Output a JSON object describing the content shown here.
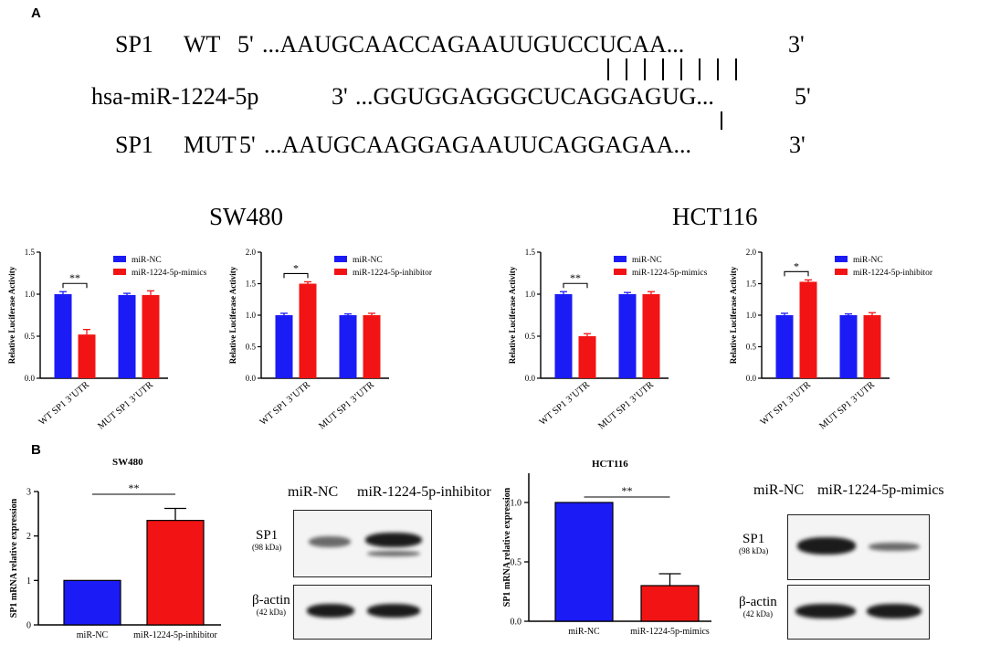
{
  "panel_a": {
    "letter": "A",
    "wt": {
      "name": "SP1",
      "type": "WT",
      "five": "5'",
      "seq": "...AAUGCAACCAGAAUUGUCCUCAA...",
      "three": "3'"
    },
    "mirna": {
      "name": "hsa-miR-1224-5p",
      "three": "3'",
      "seq": "...GGUGGAGGGCUCAGGAGUG...",
      "five": "5'"
    },
    "mut": {
      "name": "SP1",
      "type": "MUT",
      "five": "5'",
      "seq": "...AAUGCAAGGAGAAUUCAGGAGAA...",
      "three": "3'"
    },
    "pairing_marks": 8,
    "cell_lines": [
      "SW480",
      "HCT116"
    ]
  },
  "panel_b": {
    "letter": "B",
    "sw480_title": "SW480",
    "hct116_title": "HCT116",
    "blot_sw480": {
      "lanes": [
        "miR-NC",
        "miR-1224-5p-inhibitor"
      ],
      "protein": "SP1",
      "protein_kda": "(98 kDa)",
      "control": "β-actin",
      "control_kda": "(42 kDa)"
    },
    "blot_hct116": {
      "lanes": [
        "miR-NC",
        "miR-1224-5p-mimics"
      ],
      "protein": "SP1",
      "protein_kda": "(98 kDa)",
      "control": "β-actin",
      "control_kda": "(42 kDa)"
    }
  },
  "colors": {
    "blue": "#1b1bf5",
    "red": "#f21414"
  },
  "chart_data": [
    {
      "id": "luc-sw480-mimics",
      "type": "bar",
      "ylabel": "Relative Luciferase Activity",
      "ylim": [
        0,
        1.5
      ],
      "yticks": [
        "0.0",
        "0.5",
        "1.0",
        "1.5"
      ],
      "tick_values": [
        0,
        0.5,
        1.0,
        1.5
      ],
      "categories": [
        "WT SP1 3’UTR",
        "MUT SP1 3’UTR"
      ],
      "series": [
        {
          "name": "miR-NC",
          "values": [
            1.0,
            0.99
          ],
          "errors": [
            0.03,
            0.02
          ]
        },
        {
          "name": "miR-1224-5p-mimics",
          "values": [
            0.52,
            0.99
          ],
          "errors": [
            0.06,
            0.05
          ]
        }
      ],
      "significance": [
        {
          "category": 0,
          "label": "**"
        }
      ],
      "legend": "top-right"
    },
    {
      "id": "luc-sw480-inhibitor",
      "type": "bar",
      "ylabel": "Relative Luciferase Activity",
      "ylim": [
        0,
        2.0
      ],
      "yticks": [
        "0.0",
        "0.5",
        "1.0",
        "1.5",
        "2.0"
      ],
      "tick_values": [
        0,
        0.5,
        1.0,
        1.5,
        2.0
      ],
      "categories": [
        "WT SP1 3’UTR",
        "MUT SP1 3’UTR"
      ],
      "series": [
        {
          "name": "miR-NC",
          "values": [
            1.0,
            1.0
          ],
          "errors": [
            0.03,
            0.02
          ]
        },
        {
          "name": "miR-1224-5p-inhibitor",
          "values": [
            1.5,
            1.0
          ],
          "errors": [
            0.03,
            0.03
          ]
        }
      ],
      "significance": [
        {
          "category": 0,
          "label": "*"
        }
      ],
      "legend": "top-right"
    },
    {
      "id": "luc-hct116-mimics",
      "type": "bar",
      "ylabel": "Relative Luciferase Activity",
      "ylim": [
        0,
        1.5
      ],
      "yticks": [
        "0.0",
        "0.5",
        "1.0",
        "1.5"
      ],
      "tick_values": [
        0,
        0.5,
        1.0,
        1.5
      ],
      "categories": [
        "WT SP1 3’UTR",
        "MUT SP1 3’UTR"
      ],
      "series": [
        {
          "name": "miR-NC",
          "values": [
            1.0,
            1.0
          ],
          "errors": [
            0.03,
            0.02
          ]
        },
        {
          "name": "miR-1224-5p-mimics",
          "values": [
            0.5,
            1.0
          ],
          "errors": [
            0.03,
            0.03
          ]
        }
      ],
      "significance": [
        {
          "category": 0,
          "label": "**"
        }
      ],
      "legend": "top-right"
    },
    {
      "id": "luc-hct116-inhibitor",
      "type": "bar",
      "ylabel": "Relative Luciferase Activity",
      "ylim": [
        0,
        2.0
      ],
      "yticks": [
        "0.0",
        "0.5",
        "1.0",
        "1.5",
        "2.0"
      ],
      "tick_values": [
        0,
        0.5,
        1.0,
        1.5,
        2.0
      ],
      "categories": [
        "WT SP1 3’UTR",
        "MUT SP1 3’UTR"
      ],
      "series": [
        {
          "name": "miR-NC",
          "values": [
            1.0,
            1.0
          ],
          "errors": [
            0.03,
            0.02
          ]
        },
        {
          "name": "miR-1224-5p-inhibitor",
          "values": [
            1.53,
            1.0
          ],
          "errors": [
            0.03,
            0.04
          ]
        }
      ],
      "significance": [
        {
          "category": 0,
          "label": "*"
        }
      ],
      "legend": "top-right"
    },
    {
      "id": "mrna-sw480",
      "type": "bar",
      "ylabel": "SP1 mRNA relative expression",
      "ylim": [
        0,
        3
      ],
      "yticks": [
        "0",
        "1",
        "2",
        "3"
      ],
      "tick_values": [
        0,
        1,
        2,
        3
      ],
      "categories": [
        "miR-NC",
        "miR-1224-5p-inhibitor"
      ],
      "values": [
        1.0,
        2.35
      ],
      "errors": [
        0,
        0.27
      ],
      "significance": [
        {
          "label": "**"
        }
      ]
    },
    {
      "id": "mrna-hct116",
      "type": "bar",
      "ylabel": "SP1 mRNA relative expression",
      "ylim": [
        0,
        1.0
      ],
      "yticks": [
        "0.0",
        "0.5",
        "1.0"
      ],
      "tick_values": [
        0,
        0.5,
        1.0
      ],
      "minor_ticks": [
        "0.0",
        "0.5",
        "1.0"
      ],
      "categories": [
        "miR-NC",
        "miR-1224-5p-mimics"
      ],
      "values": [
        1.0,
        0.3
      ],
      "errors": [
        0,
        0.1
      ],
      "significance": [
        {
          "label": "**"
        }
      ]
    }
  ]
}
